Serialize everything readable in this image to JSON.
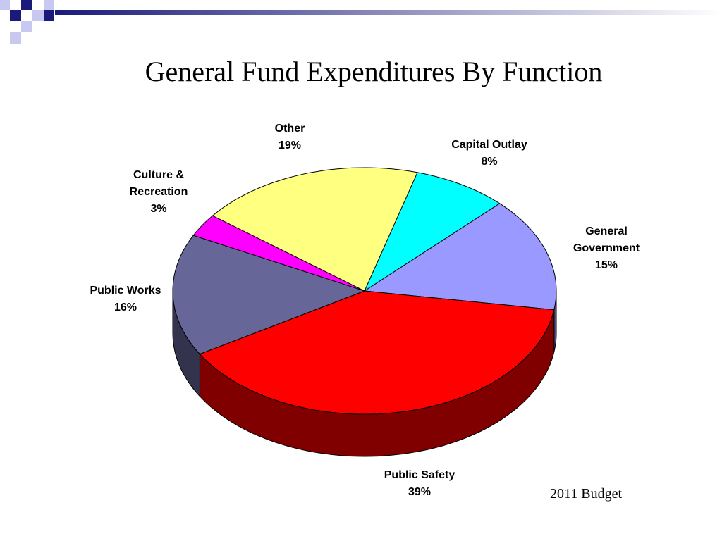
{
  "chart_data": {
    "type": "pie3d",
    "title": "General Fund Expenditures By Function",
    "footnote": "2011 Budget",
    "categories": [
      "Capital Outlay",
      "General Government",
      "Public Safety",
      "Public Works",
      "Culture & Recreation",
      "Other"
    ],
    "values": [
      8,
      15,
      39,
      16,
      3,
      19
    ],
    "value_labels": [
      "8%",
      "15%",
      "39%",
      "16%",
      "3%",
      "19%"
    ],
    "colors": [
      "#00ffff",
      "#9999ff",
      "#ff0000",
      "#666699",
      "#ff00ff",
      "#ffff80"
    ]
  }
}
